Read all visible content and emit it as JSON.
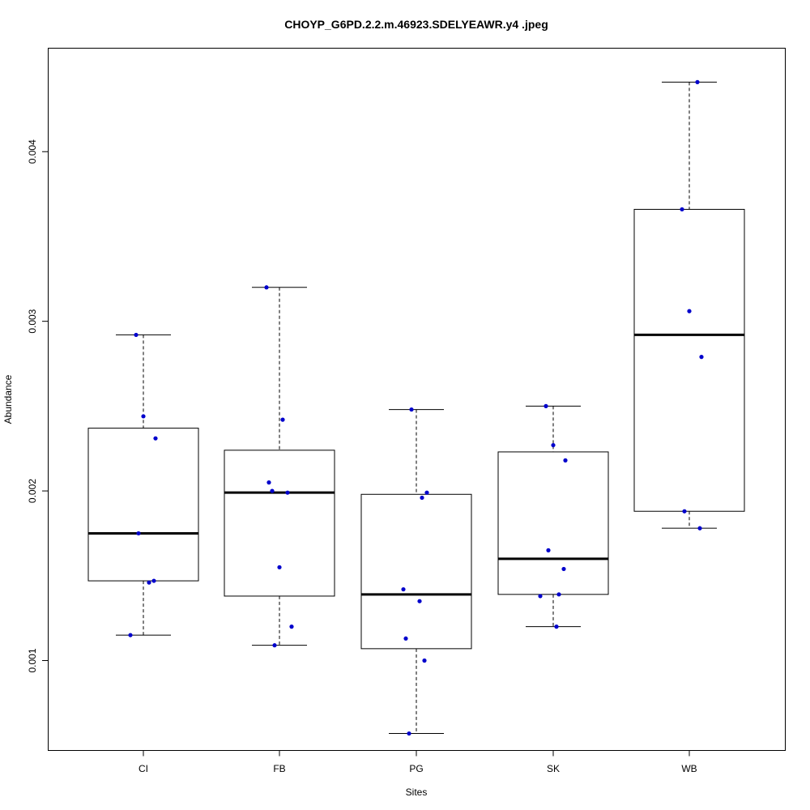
{
  "chart_data": {
    "type": "boxplot",
    "title": "CHOYP_G6PD.2.2.m.46923.SDELYEAWR.y4 .jpeg",
    "xlabel": "Sites",
    "ylabel": "Abundance",
    "categories": [
      "CI",
      "FB",
      "PG",
      "SK",
      "WB"
    ],
    "y_ticks": [
      "0.001",
      "0.002",
      "0.003",
      "0.004"
    ],
    "y_tick_values": [
      0.001,
      0.002,
      0.003,
      0.004
    ],
    "ylim": [
      0.00047,
      0.00461
    ],
    "grid": false,
    "box_color": "#000000",
    "point_color": "#0000cc",
    "boxes": [
      {
        "name": "CI",
        "whisker_low": 0.00115,
        "q1": 0.00147,
        "median": 0.00175,
        "q3": 0.00237,
        "whisker_high": 0.00292
      },
      {
        "name": "FB",
        "whisker_low": 0.00109,
        "q1": 0.00138,
        "median": 0.00199,
        "q3": 0.00224,
        "whisker_high": 0.0032
      },
      {
        "name": "PG",
        "whisker_low": 0.00057,
        "q1": 0.00107,
        "median": 0.00139,
        "q3": 0.00198,
        "whisker_high": 0.00248
      },
      {
        "name": "SK",
        "whisker_low": 0.0012,
        "q1": 0.00139,
        "median": 0.0016,
        "q3": 0.00223,
        "whisker_high": 0.0025
      },
      {
        "name": "WB",
        "whisker_low": 0.00178,
        "q1": 0.00188,
        "median": 0.00292,
        "q3": 0.00366,
        "whisker_high": 0.00441
      }
    ],
    "points": [
      {
        "category": "CI",
        "values": [
          0.00115,
          0.00146,
          0.00147,
          0.00175,
          0.00231,
          0.00244,
          0.00292
        ]
      },
      {
        "category": "FB",
        "values": [
          0.00109,
          0.0012,
          0.00155,
          0.002,
          0.00199,
          0.00205,
          0.00242,
          0.0032
        ]
      },
      {
        "category": "PG",
        "values": [
          0.00057,
          0.001,
          0.00113,
          0.00135,
          0.00142,
          0.00196,
          0.00199,
          0.00248
        ]
      },
      {
        "category": "SK",
        "values": [
          0.0012,
          0.00138,
          0.00139,
          0.00154,
          0.00165,
          0.00218,
          0.00227,
          0.0025
        ]
      },
      {
        "category": "WB",
        "values": [
          0.00178,
          0.00188,
          0.00279,
          0.00306,
          0.00366,
          0.00441
        ]
      }
    ]
  }
}
